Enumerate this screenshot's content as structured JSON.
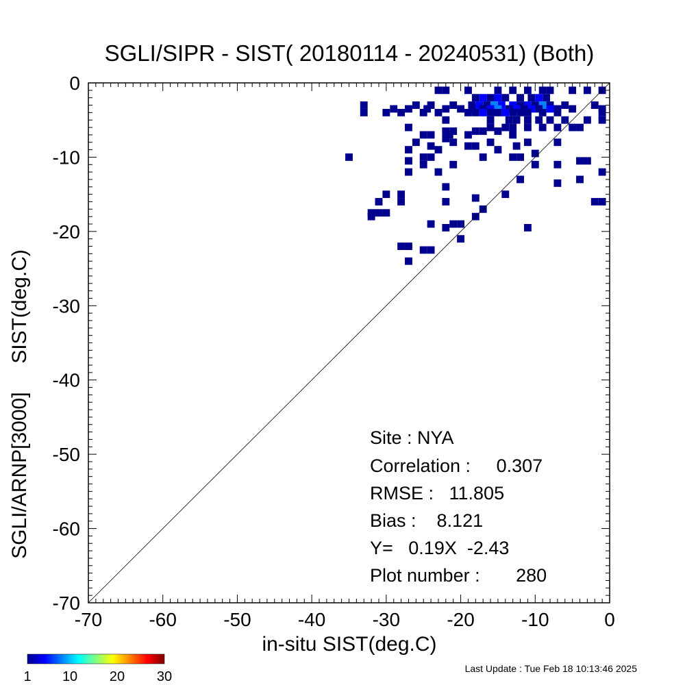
{
  "chart_data": {
    "type": "heatmap",
    "title": "SGLI/SIPR - SIST( 20180114 - 20240531) (Both)",
    "xlabel": "in-situ SIST(deg.C)",
    "ylabel": "SGLI/ARNP[3000]     SIST(deg.C)",
    "xlim": [
      -70,
      0
    ],
    "ylim": [
      -70,
      0
    ],
    "x_ticks": [
      "-70",
      "-60",
      "-50",
      "-40",
      "-30",
      "-20",
      "-10",
      "0"
    ],
    "y_ticks": [
      "-70",
      "-60",
      "-50",
      "-40",
      "-30",
      "-20",
      "-10",
      "0"
    ],
    "x_tick_values": [
      -70,
      -60,
      -50,
      -40,
      -30,
      -20,
      -10,
      0
    ],
    "y_tick_values": [
      -70,
      -60,
      -50,
      -40,
      -30,
      -20,
      -10,
      0
    ],
    "reference_line": "y = x",
    "grid": false,
    "stats": {
      "site": "Site : NYA",
      "correlation": "Correlation :     0.307",
      "rmse": "RMSE :   11.805",
      "bias": "Bias :    8.121",
      "regression": "Y=   0.19X  -2.43",
      "plot_number": "Plot number :       280"
    },
    "colorbar": {
      "range": [
        1,
        30
      ],
      "ticks": [
        "1",
        "10",
        "20",
        "30"
      ],
      "tick_values": [
        1,
        10,
        20,
        30
      ],
      "colors": [
        "#00008f",
        "#0000ff",
        "#0080ff",
        "#00ffff",
        "#80ff80",
        "#ffff00",
        "#ff8000",
        "#ff0000",
        "#800000"
      ]
    },
    "cells": [
      [
        -1.0,
        -1.0,
        1
      ],
      [
        -3.0,
        -1.0,
        1
      ],
      [
        -5.0,
        -1.0,
        1
      ],
      [
        -8.0,
        -1.0,
        1
      ],
      [
        -9.0,
        -1.0,
        1
      ],
      [
        -11.0,
        -1.0,
        1
      ],
      [
        -13.0,
        -1.0,
        1
      ],
      [
        -15.0,
        -1.0,
        1
      ],
      [
        -19.0,
        -1.0,
        1
      ],
      [
        -22.0,
        -1.0,
        1
      ],
      [
        -23.0,
        -1.0,
        1
      ],
      [
        -8.5,
        -2.0,
        2
      ],
      [
        -9.5,
        -2.0,
        3
      ],
      [
        -10.5,
        -2.0,
        2
      ],
      [
        -12.0,
        -2.0,
        1
      ],
      [
        -14.0,
        -2.0,
        2
      ],
      [
        -15.0,
        -2.0,
        4
      ],
      [
        -16.0,
        -2.0,
        2
      ],
      [
        -17.0,
        -2.0,
        3
      ],
      [
        -18.0,
        -2.0,
        1
      ],
      [
        -2.0,
        -3.0,
        1
      ],
      [
        -6.0,
        -3.0,
        1
      ],
      [
        -8.0,
        -3.0,
        2
      ],
      [
        -9.0,
        -3.0,
        5
      ],
      [
        -10.0,
        -3.0,
        2
      ],
      [
        -11.0,
        -3.0,
        3
      ],
      [
        -12.0,
        -3.0,
        2
      ],
      [
        -13.0,
        -3.0,
        4
      ],
      [
        -14.5,
        -3.0,
        3
      ],
      [
        -15.5,
        -3.0,
        6
      ],
      [
        -16.5,
        -3.0,
        2
      ],
      [
        -17.5,
        -3.0,
        3
      ],
      [
        -18.5,
        -3.0,
        1
      ],
      [
        -21.0,
        -3.0,
        1
      ],
      [
        -24.0,
        -3.0,
        1
      ],
      [
        -26.0,
        -3.0,
        1
      ],
      [
        -1.0,
        -3.5,
        1
      ],
      [
        -5.0,
        -3.5,
        1
      ],
      [
        -7.0,
        -3.5,
        2
      ],
      [
        -8.0,
        -3.5,
        3
      ],
      [
        -9.5,
        -3.5,
        2
      ],
      [
        -10.5,
        -3.5,
        4
      ],
      [
        -11.5,
        -3.5,
        2
      ],
      [
        -12.5,
        -3.5,
        3
      ],
      [
        -13.5,
        -3.5,
        2
      ],
      [
        -15.0,
        -3.5,
        5
      ],
      [
        -16.0,
        -3.5,
        3
      ],
      [
        -17.0,
        -3.5,
        2
      ],
      [
        -18.5,
        -3.5,
        1
      ],
      [
        -20.0,
        -3.5,
        1
      ],
      [
        -22.0,
        -3.5,
        2
      ],
      [
        -24.5,
        -3.5,
        2
      ],
      [
        -27.0,
        -3.5,
        1
      ],
      [
        -29.0,
        -3.5,
        1
      ],
      [
        -33.0,
        -3.0,
        1
      ],
      [
        -1.0,
        -4.0,
        1
      ],
      [
        -7.0,
        -4.0,
        1
      ],
      [
        -9.0,
        -4.0,
        1
      ],
      [
        -11.0,
        -4.0,
        2
      ],
      [
        -12.0,
        -4.0,
        1
      ],
      [
        -13.0,
        -4.0,
        2
      ],
      [
        -14.0,
        -4.0,
        3
      ],
      [
        -15.0,
        -4.0,
        2
      ],
      [
        -16.0,
        -4.0,
        2
      ],
      [
        -17.0,
        -4.0,
        4
      ],
      [
        -18.0,
        -4.0,
        2
      ],
      [
        -19.0,
        -4.0,
        1
      ],
      [
        -23.0,
        -4.0,
        1
      ],
      [
        -25.0,
        -4.0,
        1
      ],
      [
        -30.0,
        -4.0,
        1
      ],
      [
        -33.0,
        -4.0,
        1
      ],
      [
        -28.0,
        -4.0,
        1
      ],
      [
        -1.0,
        -5.0,
        1
      ],
      [
        -3.0,
        -5.0,
        1
      ],
      [
        -6.0,
        -5.0,
        1
      ],
      [
        -8.0,
        -5.0,
        1
      ],
      [
        -9.5,
        -5.0,
        1
      ],
      [
        -11.0,
        -5.0,
        1
      ],
      [
        -12.5,
        -5.0,
        1
      ],
      [
        -13.5,
        -5.0,
        1
      ],
      [
        -16.0,
        -5.0,
        1
      ],
      [
        -22.0,
        -5.0,
        1
      ],
      [
        -4.0,
        -6.0,
        1
      ],
      [
        -5.0,
        -6.0,
        1
      ],
      [
        -7.0,
        -6.0,
        1
      ],
      [
        -9.0,
        -6.0,
        1
      ],
      [
        -11.0,
        -6.0,
        1
      ],
      [
        -13.0,
        -6.0,
        1
      ],
      [
        -14.0,
        -6.0,
        1
      ],
      [
        -16.0,
        -6.0,
        1
      ],
      [
        -27.0,
        -6.0,
        1
      ],
      [
        -15.0,
        -6.5,
        1
      ],
      [
        -17.0,
        -6.5,
        1
      ],
      [
        -18.0,
        -6.5,
        1
      ],
      [
        -22.0,
        -6.5,
        1
      ],
      [
        -21.0,
        -6.5,
        1
      ],
      [
        -24.0,
        -7.0,
        1
      ],
      [
        -25.0,
        -7.0,
        1
      ],
      [
        -19.0,
        -7.0,
        1
      ],
      [
        -21.5,
        -7.0,
        1
      ],
      [
        -13.0,
        -7.0,
        1
      ],
      [
        -22.0,
        -7.5,
        1
      ],
      [
        -7.0,
        -8.0,
        1
      ],
      [
        -11.0,
        -8.0,
        1
      ],
      [
        -16.0,
        -8.0,
        1
      ],
      [
        -21.0,
        -8.0,
        1
      ],
      [
        -26.0,
        -8.0,
        1
      ],
      [
        -12.5,
        -8.5,
        1
      ],
      [
        -18.0,
        -8.5,
        1
      ],
      [
        -19.0,
        -8.5,
        1
      ],
      [
        -24.0,
        -8.5,
        1
      ],
      [
        -15.0,
        -9.0,
        1
      ],
      [
        -23.0,
        -9.0,
        1
      ],
      [
        -27.0,
        -9.0,
        1
      ],
      [
        -10.0,
        -9.5,
        1
      ],
      [
        -12.0,
        -10.0,
        1
      ],
      [
        -13.0,
        -10.0,
        1
      ],
      [
        -17.0,
        -10.0,
        1
      ],
      [
        -24.0,
        -10.0,
        1
      ],
      [
        -25.0,
        -10.0,
        1
      ],
      [
        -27.0,
        -10.5,
        1
      ],
      [
        -35.0,
        -10.0,
        1
      ],
      [
        -25.0,
        -11.0,
        1
      ],
      [
        -7.0,
        -11.0,
        1
      ],
      [
        -4.0,
        -10.5,
        1
      ],
      [
        -3.0,
        -10.5,
        1
      ],
      [
        -21.0,
        -11.0,
        1
      ],
      [
        -10.0,
        -11.0,
        1
      ],
      [
        -1.0,
        -12.0,
        1
      ],
      [
        -27.0,
        -12.0,
        1
      ],
      [
        -23.0,
        -12.0,
        1
      ],
      [
        -12.0,
        -13.0,
        1
      ],
      [
        -4.0,
        -13.0,
        1
      ],
      [
        -7.0,
        -13.5,
        1
      ],
      [
        -22.0,
        -14.0,
        1
      ],
      [
        -14.0,
        -15.0,
        1
      ],
      [
        -30.0,
        -15.0,
        1
      ],
      [
        -28.0,
        -15.0,
        1
      ],
      [
        -18.0,
        -15.5,
        1
      ],
      [
        -2.0,
        -16.0,
        1
      ],
      [
        -1.0,
        -16.0,
        1
      ],
      [
        -31.0,
        -16.0,
        1
      ],
      [
        -28.0,
        -16.0,
        1
      ],
      [
        -22.0,
        -16.0,
        1
      ],
      [
        -17.0,
        -17.0,
        1
      ],
      [
        -32.0,
        -17.5,
        1
      ],
      [
        -31.0,
        -17.5,
        1
      ],
      [
        -30.0,
        -17.5,
        1
      ],
      [
        -32.0,
        -18.0,
        1
      ],
      [
        -18.0,
        -18.0,
        1
      ],
      [
        -20.0,
        -19.0,
        1
      ],
      [
        -21.0,
        -19.0,
        1
      ],
      [
        -24.0,
        -19.0,
        1
      ],
      [
        -11.0,
        -19.5,
        1
      ],
      [
        -22.0,
        -19.5,
        1
      ],
      [
        -20.0,
        -21.0,
        1
      ],
      [
        -28.0,
        -22.0,
        1
      ],
      [
        -27.0,
        -22.0,
        1
      ],
      [
        -25.0,
        -22.5,
        1
      ],
      [
        -24.0,
        -22.5,
        1
      ],
      [
        -27.0,
        -24.0,
        1
      ]
    ]
  },
  "footer": {
    "last_update": "Last Update : Tue Feb 18 10:13:46 2025"
  }
}
